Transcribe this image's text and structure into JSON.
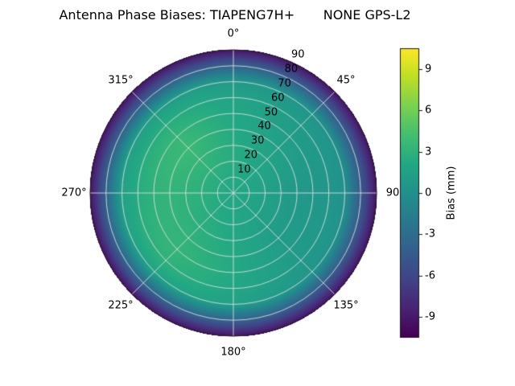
{
  "title": "Antenna Phase Biases: TIAPENG7H+       NONE GPS-L2",
  "polar_axis": {
    "angle_labels": [
      {
        "text": "0°",
        "deg": 0
      },
      {
        "text": "45°",
        "deg": 45
      },
      {
        "text": "90",
        "deg": 90
      },
      {
        "text": "135°",
        "deg": 135
      },
      {
        "text": "180°",
        "deg": 180
      },
      {
        "text": "225°",
        "deg": 225
      },
      {
        "text": "270°",
        "deg": 270
      },
      {
        "text": "315°",
        "deg": 315
      }
    ],
    "radial_tick_labels": [
      "10",
      "20",
      "30",
      "40",
      "50",
      "60",
      "70",
      "80",
      "90"
    ],
    "radial_label_angle_deg": 25
  },
  "colorbar": {
    "label": "Bias (mm)",
    "tick_labels": [
      "9",
      "6",
      "3",
      "0",
      "-3",
      "-6",
      "-9"
    ],
    "tick_values": [
      9,
      6,
      3,
      0,
      -3,
      -6,
      -9
    ],
    "vmin": -10.5,
    "vmax": 10.5,
    "colormap": "viridis"
  },
  "chart_data": {
    "type": "heatmap",
    "projection": "polar",
    "title": "Antenna Phase Biases: TIAPENG7H+       NONE GPS-L2",
    "colorbar_label": "Bias (mm)",
    "angle_direction": "clockwise",
    "zero_location": "N",
    "azimuth_deg": [
      0,
      45,
      90,
      135,
      180,
      225,
      270,
      315
    ],
    "zenith_deg": [
      0,
      10,
      20,
      30,
      40,
      50,
      60,
      70,
      80,
      90
    ],
    "bias_mm": [
      [
        2.0,
        2.0,
        2.0,
        2.0,
        2.0,
        2.0,
        2.0,
        2.0
      ],
      [
        2.2,
        2.0,
        1.8,
        1.8,
        2.0,
        2.2,
        2.4,
        2.4
      ],
      [
        2.4,
        1.9,
        1.4,
        1.5,
        2.0,
        2.5,
        2.8,
        3.0
      ],
      [
        2.4,
        1.6,
        1.0,
        1.2,
        2.1,
        2.8,
        3.0,
        3.4
      ],
      [
        2.2,
        1.4,
        0.7,
        1.0,
        2.2,
        3.1,
        3.2,
        3.7
      ],
      [
        2.0,
        1.1,
        0.5,
        0.9,
        2.2,
        3.3,
        3.0,
        3.4
      ],
      [
        1.7,
        0.9,
        0.4,
        0.8,
        2.0,
        3.0,
        2.4,
        2.6
      ],
      [
        0.8,
        0.4,
        0.0,
        0.4,
        1.4,
        1.8,
        1.4,
        1.3
      ],
      [
        -4.0,
        -4.2,
        -4.5,
        -4.2,
        -3.8,
        -3.5,
        -3.8,
        -4.0
      ],
      [
        -9.5,
        -9.5,
        -9.5,
        -9.5,
        -9.5,
        -9.5,
        -9.5,
        -9.5
      ]
    ],
    "color_range": [
      -10.5,
      10.5
    ],
    "colormap": "viridis",
    "legend_position": "right-colorbar",
    "grid": true
  },
  "colors": {
    "background": "#ffffff",
    "grid_line": "rgba(220,220,220,0.9)",
    "outline": "#1a1a1a",
    "viridis_stops": [
      "#440154",
      "#482475",
      "#414487",
      "#355f8d",
      "#2a788e",
      "#21918c",
      "#22a884",
      "#44bf70",
      "#7ad151",
      "#bddf26",
      "#fde725"
    ]
  }
}
